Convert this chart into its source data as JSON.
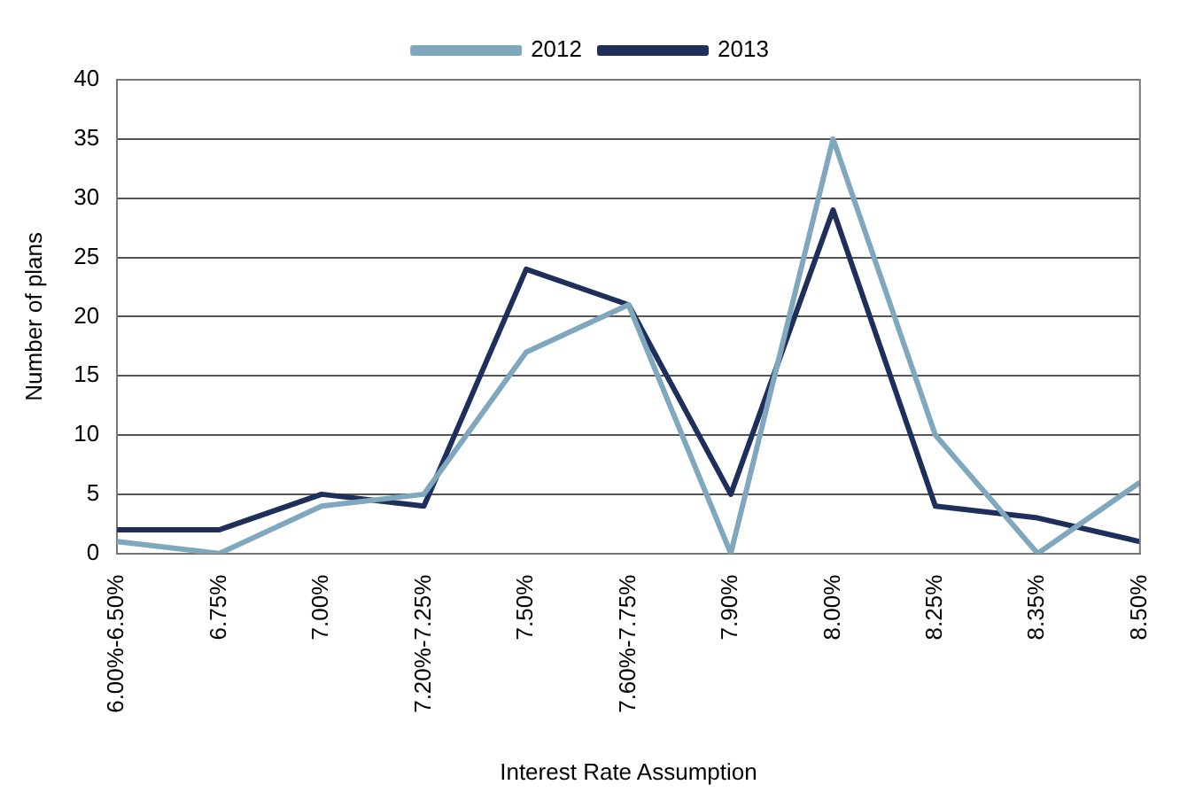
{
  "chart_data": {
    "type": "line",
    "xlabel": "Interest Rate Assumption",
    "ylabel": "Number of plans",
    "categories": [
      "6.00%-6.50%",
      "6.75%",
      "7.00%",
      "7.20%-7.25%",
      "7.50%",
      "7.60%-7.75%",
      "7.90%",
      "8.00%",
      "8.25%",
      "8.35%",
      "8.50%"
    ],
    "series": [
      {
        "name": "2012",
        "color": "#7fa7bd",
        "values": [
          1,
          0,
          4,
          5,
          17,
          21,
          0,
          35,
          10,
          0,
          6
        ]
      },
      {
        "name": "2013",
        "color": "#1f2f5c",
        "values": [
          2,
          2,
          5,
          4,
          24,
          21,
          5,
          29,
          4,
          3,
          1
        ]
      }
    ],
    "ylim": [
      0,
      40
    ],
    "yticks": [
      0,
      5,
      10,
      15,
      20,
      25,
      30,
      35,
      40
    ],
    "grid": "y",
    "legend": "top",
    "marker": "none"
  }
}
